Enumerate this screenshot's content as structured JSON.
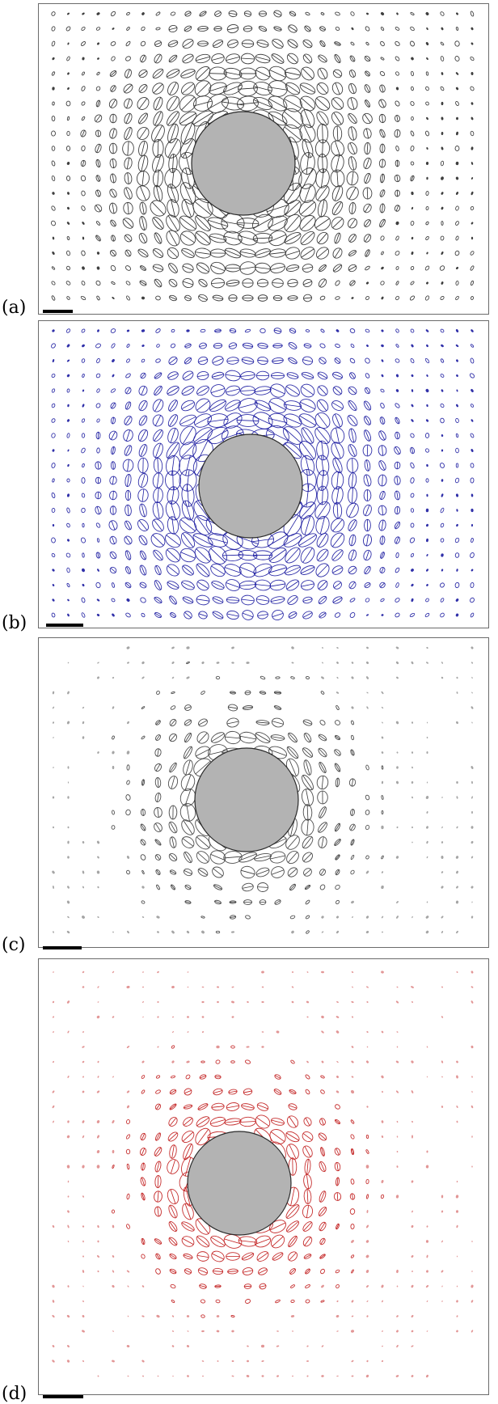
{
  "panels": [
    {
      "label": "(a)",
      "ellipse_color": "#2b2b2b",
      "style": "dense",
      "seed": 11
    },
    {
      "label": "(b)",
      "ellipse_color": "#1a1aa0",
      "style": "dense",
      "seed": 23
    },
    {
      "label": "(c)",
      "ellipse_color": "#3a3a3a",
      "style": "sparse",
      "seed": 37
    },
    {
      "label": "(d)",
      "ellipse_color": "#c01818",
      "style": "sparse",
      "seed": 53
    }
  ],
  "inclusion_fill": "#b3b3b3",
  "frame_color": "#6b6b6b"
}
